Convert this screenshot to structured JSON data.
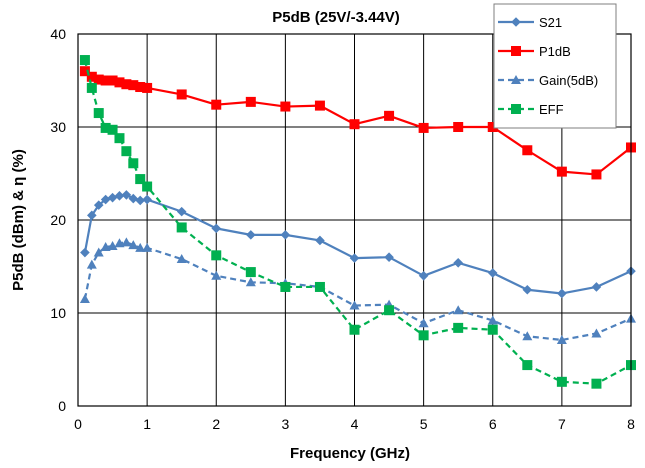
{
  "chart_data": {
    "type": "line",
    "title": "P5dB (25V/-3.44V)",
    "xlabel": "Frequency (GHz)",
    "ylabel": "P5dB (dBm) & η (%)",
    "xlim": [
      0,
      8
    ],
    "ylim": [
      0,
      40
    ],
    "xticks": [
      0,
      1,
      2,
      3,
      4,
      5,
      6,
      7,
      8
    ],
    "yticks": [
      0,
      10,
      20,
      30,
      40
    ],
    "grid": true,
    "legend_position": "top-right",
    "series": [
      {
        "name": "S21",
        "color": "#4f81bd",
        "line_style": "solid",
        "marker": "diamond",
        "x": [
          0.1,
          0.2,
          0.3,
          0.4,
          0.5,
          0.6,
          0.7,
          0.8,
          0.9,
          1.0,
          1.5,
          2.0,
          2.5,
          3.0,
          3.5,
          4.0,
          4.5,
          5.0,
          5.5,
          6.0,
          6.5,
          7.0,
          7.5,
          8.0
        ],
        "y": [
          16.5,
          20.5,
          21.6,
          22.2,
          22.4,
          22.6,
          22.7,
          22.3,
          22.1,
          22.2,
          20.9,
          19.1,
          18.4,
          18.4,
          17.8,
          15.9,
          16.0,
          14.0,
          15.4,
          14.3,
          12.5,
          12.1,
          12.8,
          14.5
        ]
      },
      {
        "name": "P1dB",
        "color": "#ff0000",
        "line_style": "solid",
        "marker": "square",
        "x": [
          0.1,
          0.2,
          0.3,
          0.4,
          0.5,
          0.6,
          0.7,
          0.8,
          0.9,
          1.0,
          1.5,
          2.0,
          2.5,
          3.0,
          3.5,
          4.0,
          4.5,
          5.0,
          5.5,
          6.0,
          6.5,
          7.0,
          7.5,
          8.0
        ],
        "y": [
          36.0,
          35.4,
          35.1,
          35.0,
          35.0,
          34.8,
          34.6,
          34.5,
          34.3,
          34.2,
          33.5,
          32.4,
          32.7,
          32.2,
          32.3,
          30.3,
          31.2,
          29.9,
          30.0,
          30.0,
          27.5,
          25.2,
          24.9,
          27.8
        ]
      },
      {
        "name": "Gain(5dB)",
        "color": "#4f81bd",
        "line_style": "dashed",
        "marker": "triangle",
        "x": [
          0.1,
          0.2,
          0.3,
          0.4,
          0.5,
          0.6,
          0.7,
          0.8,
          0.9,
          1.0,
          1.5,
          2.0,
          2.5,
          3.0,
          3.5,
          4.0,
          4.5,
          5.0,
          5.5,
          6.0,
          6.5,
          7.0,
          7.5,
          8.0
        ],
        "y": [
          11.5,
          15.2,
          16.5,
          17.1,
          17.2,
          17.5,
          17.6,
          17.3,
          17.0,
          17.0,
          15.8,
          14.0,
          13.3,
          13.2,
          12.8,
          10.8,
          10.9,
          8.9,
          10.3,
          9.2,
          7.5,
          7.1,
          7.8,
          9.4
        ]
      },
      {
        "name": "EFF",
        "color": "#00b050",
        "line_style": "dashed",
        "marker": "square",
        "x": [
          0.1,
          0.2,
          0.3,
          0.4,
          0.5,
          0.6,
          0.7,
          0.8,
          0.9,
          1.0,
          1.5,
          2.0,
          2.5,
          3.0,
          3.5,
          4.0,
          4.5,
          5.0,
          5.5,
          6.0,
          6.5,
          7.0,
          7.5,
          8.0
        ],
        "y": [
          37.2,
          34.2,
          31.5,
          29.9,
          29.7,
          28.8,
          27.4,
          26.1,
          24.4,
          23.6,
          19.2,
          16.2,
          14.4,
          12.8,
          12.8,
          8.2,
          10.3,
          7.6,
          8.4,
          8.2,
          4.4,
          2.6,
          2.4,
          4.4
        ]
      }
    ]
  }
}
